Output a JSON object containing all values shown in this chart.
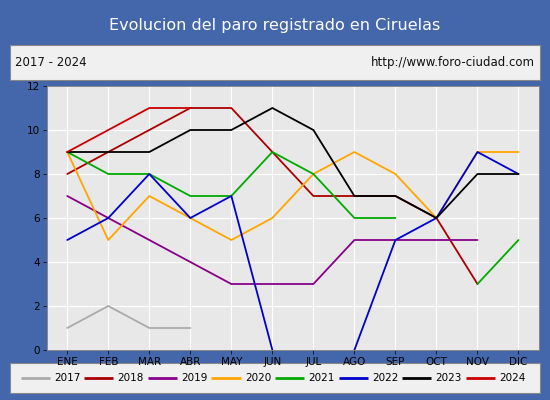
{
  "title": "Evolucion del paro registrado en Ciruelas",
  "subtitle_left": "2017 - 2024",
  "subtitle_right": "http://www.foro-ciudad.com",
  "months": [
    "ENE",
    "FEB",
    "MAR",
    "ABR",
    "MAY",
    "JUN",
    "JUL",
    "AGO",
    "SEP",
    "OCT",
    "NOV",
    "DIC"
  ],
  "series": {
    "2017": {
      "color": "#aaaaaa",
      "data": [
        1,
        2,
        1,
        1,
        null,
        null,
        null,
        null,
        null,
        null,
        null,
        null
      ]
    },
    "2018": {
      "color": "#aa0000",
      "data": [
        8,
        9,
        10,
        11,
        11,
        9,
        7,
        7,
        7,
        6,
        3,
        null
      ]
    },
    "2019": {
      "color": "#880088",
      "data": [
        7,
        6,
        5,
        4,
        3,
        3,
        3,
        5,
        5,
        5,
        5,
        null
      ]
    },
    "2020": {
      "color": "#ffa500",
      "data": [
        9,
        5,
        7,
        6,
        5,
        6,
        8,
        9,
        8,
        6,
        9,
        9
      ]
    },
    "2021": {
      "color": "#00aa00",
      "data": [
        9,
        8,
        8,
        7,
        7,
        9,
        8,
        6,
        6,
        null,
        3,
        5
      ]
    },
    "2022": {
      "color": "#0000cc",
      "data": [
        5,
        6,
        8,
        6,
        7,
        0,
        null,
        0,
        5,
        6,
        9,
        8
      ]
    },
    "2023": {
      "color": "#000000",
      "data": [
        9,
        9,
        9,
        10,
        10,
        11,
        10,
        7,
        7,
        6,
        8,
        8
      ]
    },
    "2024": {
      "color": "#cc0000",
      "data": [
        9,
        10,
        11,
        11,
        null,
        null,
        null,
        null,
        null,
        null,
        null,
        null
      ]
    }
  },
  "ylim": [
    0,
    12
  ],
  "yticks": [
    0,
    2,
    4,
    6,
    8,
    10,
    12
  ],
  "bg_color": "#f0f0f0",
  "plot_bg_color": "#e8e8e8",
  "title_bg_color": "#5588cc",
  "title_text_color": "white",
  "subtitle_bg_color": "#f0f0f0",
  "subtitle_text_color": "#111111",
  "subtitle_box_color": "#888888",
  "legend_bg_color": "#f0f0f0",
  "outer_border_color": "#4466aa"
}
